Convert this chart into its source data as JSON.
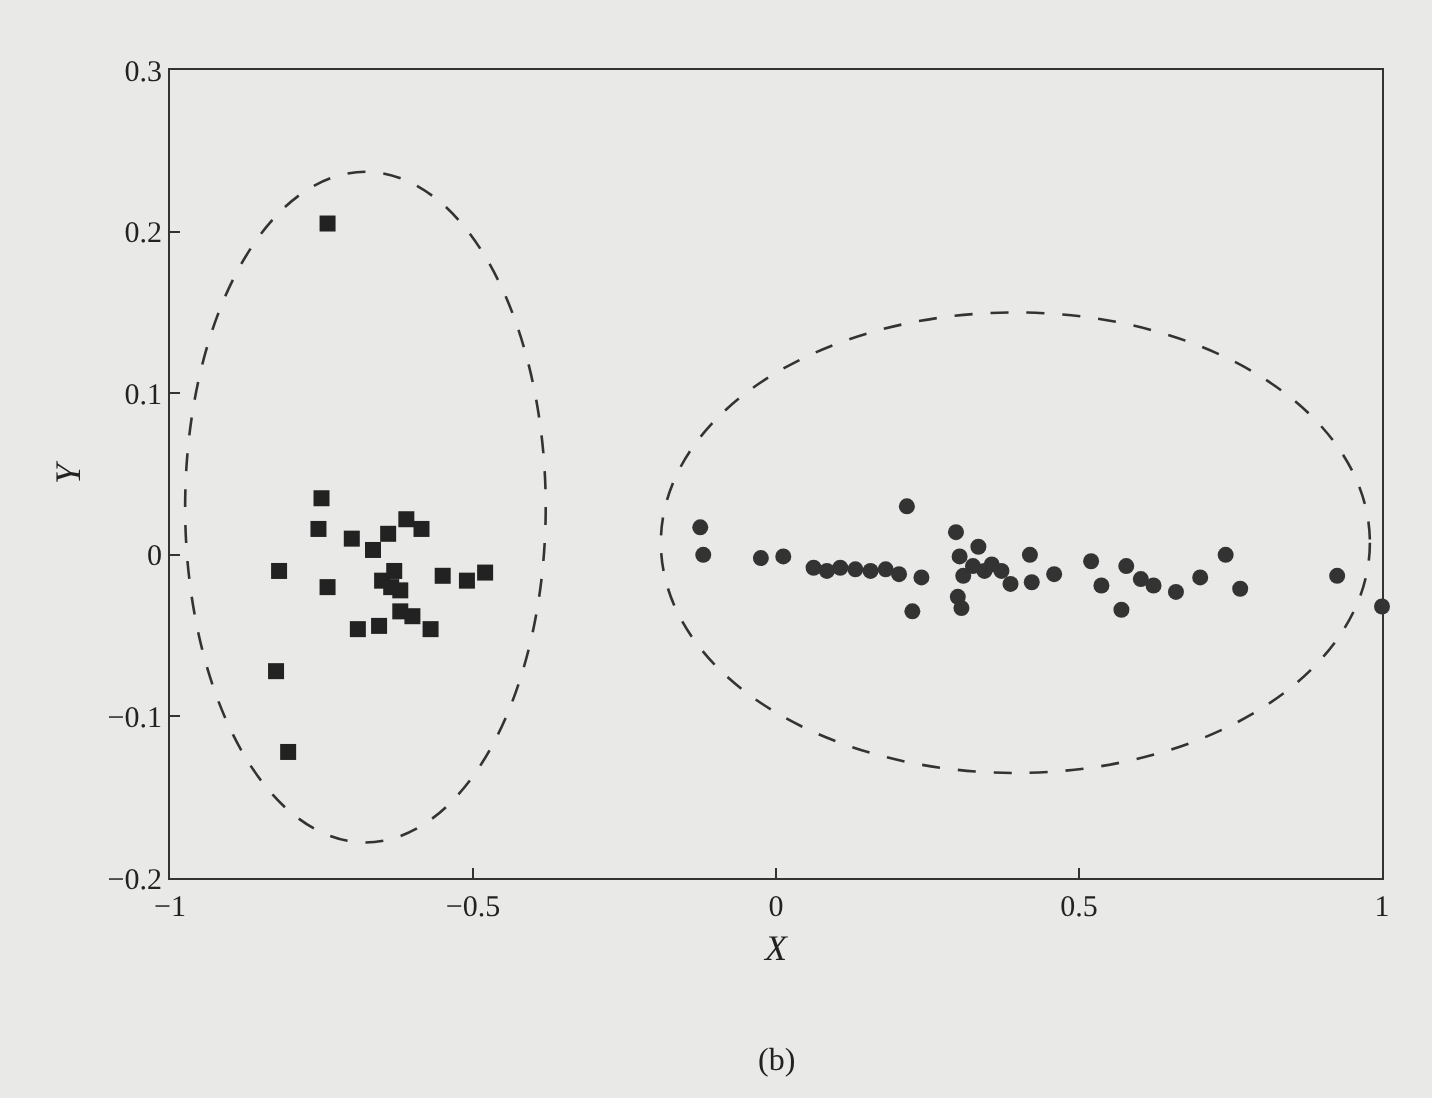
{
  "chart_data": {
    "type": "scatter",
    "xlabel": "X",
    "ylabel": "Y",
    "annotations": [
      "(b)"
    ],
    "xlim": [
      -1,
      1
    ],
    "xticks": [
      {
        "value": -1,
        "label": "−1"
      },
      {
        "value": -0.5,
        "label": "−0.5"
      },
      0,
      0.5,
      1
    ],
    "ylim": [
      -0.2,
      0.3
    ],
    "yticks": [
      {
        "value": -0.2,
        "label": "−0.2"
      },
      {
        "value": -0.1,
        "label": "−0.1"
      },
      0,
      0.1,
      0.2,
      0.3
    ],
    "grid": false,
    "series": [
      {
        "color": "#222222",
        "marker": "square",
        "x": [
          -0.74,
          -0.75,
          -0.755,
          -0.82,
          -0.74,
          -0.7,
          -0.825,
          -0.805,
          -0.665,
          -0.64,
          -0.61,
          -0.585,
          -0.65,
          -0.63,
          -0.62,
          -0.62,
          -0.6,
          -0.69,
          -0.655,
          -0.57,
          -0.55,
          -0.51,
          -0.48,
          -0.635
        ],
        "values": [
          0.205,
          0.035,
          0.016,
          -0.01,
          -0.02,
          0.01,
          -0.072,
          -0.122,
          0.003,
          0.013,
          0.022,
          0.016,
          -0.016,
          -0.01,
          -0.022,
          -0.035,
          -0.038,
          -0.046,
          -0.044,
          -0.046,
          -0.013,
          -0.016,
          -0.011,
          -0.02
        ]
      },
      {
        "color": "#333333",
        "marker": "circle",
        "x": [
          -0.125,
          -0.12,
          -0.025,
          0.012,
          0.062,
          0.075,
          0.084,
          0.106,
          0.131,
          0.156,
          0.181,
          0.203,
          0.216,
          0.24,
          0.225,
          0.297,
          0.303,
          0.309,
          0.3,
          0.306,
          0.334,
          0.344,
          0.356,
          0.372,
          0.325,
          0.387,
          0.419,
          0.422,
          0.459,
          0.52,
          0.537,
          0.57,
          0.578,
          0.602,
          0.623,
          0.66,
          0.7,
          0.742,
          0.766,
          0.926,
          1.0
        ],
        "values": [
          0.017,
          0.0,
          -0.002,
          -0.001,
          -0.008,
          null,
          -0.01,
          -0.008,
          -0.009,
          -0.01,
          -0.009,
          -0.012,
          0.03,
          -0.014,
          -0.035,
          0.014,
          -0.001,
          -0.013,
          -0.026,
          -0.033,
          0.005,
          -0.01,
          -0.006,
          -0.01,
          -0.007,
          -0.018,
          0.0,
          -0.017,
          -0.012,
          -0.004,
          -0.019,
          -0.034,
          -0.007,
          -0.015,
          -0.019,
          -0.023,
          -0.014,
          0.0,
          -0.021,
          -0.013,
          -0.032
        ]
      }
    ]
  }
}
